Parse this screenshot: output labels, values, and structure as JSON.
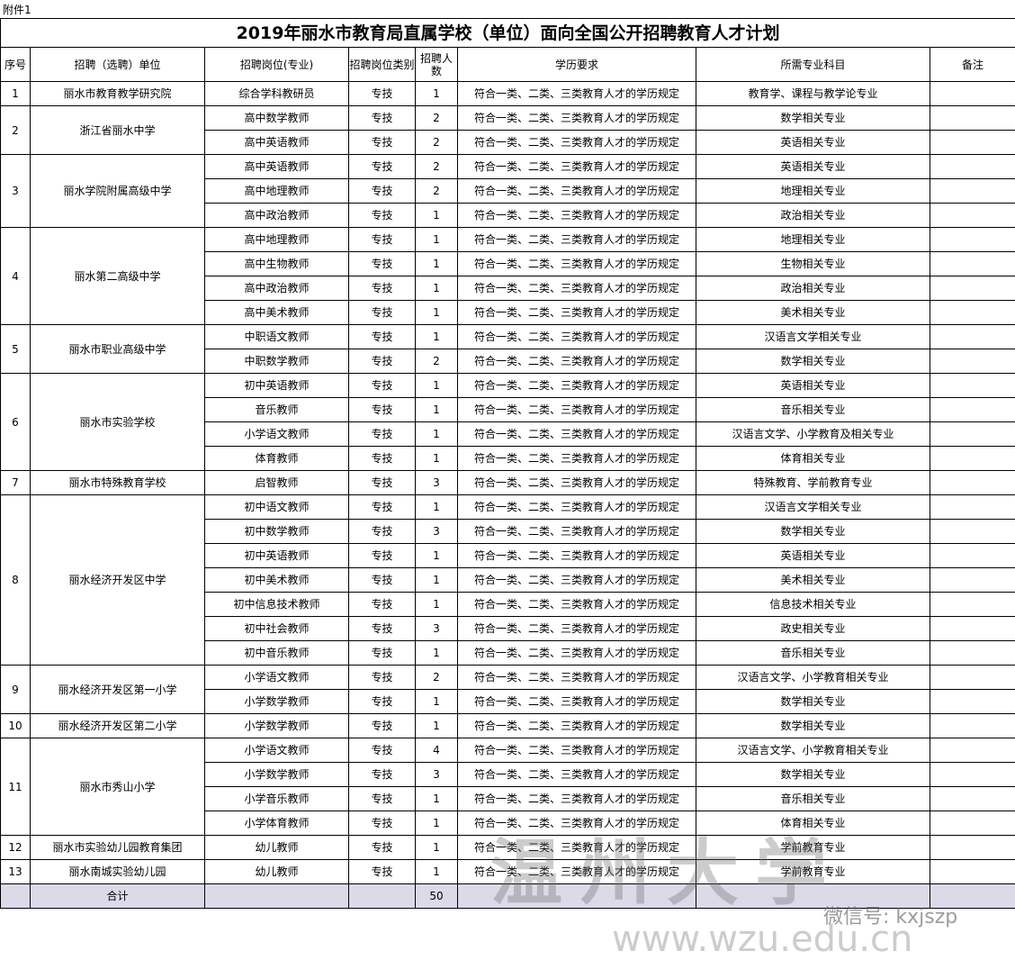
{
  "attachment": "附件1",
  "title": "2019年丽水市教育局直属学校（单位）面向全国公开招聘教育人才计划",
  "header": [
    "序号",
    "招聘（选聘）单位",
    "招聘岗位(专业)",
    "招聘岗位类别",
    "招聘人数",
    "学历要求",
    "所需专业科目",
    "备注"
  ],
  "units": [
    {
      "no": 1,
      "name": "丽水市教育教学研究院",
      "posts": [
        {
          "post": "综合学科教研员",
          "category": "专技",
          "count": 1,
          "education": "符合一类、二类、三类教育人才的学历规定",
          "major": "教育学、课程与教学论专业"
        }
      ]
    },
    {
      "no": 2,
      "name": "浙江省丽水中学",
      "posts": [
        {
          "post": "高中数学教师",
          "category": "专技",
          "count": 2,
          "education": "符合一类、二类、三类教育人才的学历规定",
          "major": "数学相关专业"
        },
        {
          "post": "高中英语教师",
          "category": "专技",
          "count": 2,
          "education": "符合一类、二类、三类教育人才的学历规定",
          "major": "英语相关专业"
        }
      ]
    },
    {
      "no": 3,
      "name": "丽水学院附属高级中学",
      "posts": [
        {
          "post": "高中英语教师",
          "category": "专技",
          "count": 2,
          "education": "符合一类、二类、三类教育人才的学历规定",
          "major": "英语相关专业"
        },
        {
          "post": "高中地理教师",
          "category": "专技",
          "count": 2,
          "education": "符合一类、二类、三类教育人才的学历规定",
          "major": "地理相关专业"
        },
        {
          "post": "高中政治教师",
          "category": "专技",
          "count": 1,
          "education": "符合一类、二类、三类教育人才的学历规定",
          "major": "政治相关专业"
        }
      ]
    },
    {
      "no": 4,
      "name": "丽水第二高级中学",
      "posts": [
        {
          "post": "高中地理教师",
          "category": "专技",
          "count": 1,
          "education": "符合一类、二类、三类教育人才的学历规定",
          "major": "地理相关专业"
        },
        {
          "post": "高中生物教师",
          "category": "专技",
          "count": 1,
          "education": "符合一类、二类、三类教育人才的学历规定",
          "major": "生物相关专业"
        },
        {
          "post": "高中政治教师",
          "category": "专技",
          "count": 1,
          "education": "符合一类、二类、三类教育人才的学历规定",
          "major": "政治相关专业"
        },
        {
          "post": "高中美术教师",
          "category": "专技",
          "count": 1,
          "education": "符合一类、二类、三类教育人才的学历规定",
          "major": "美术相关专业"
        }
      ]
    },
    {
      "no": 5,
      "name": "丽水市职业高级中学",
      "posts": [
        {
          "post": "中职语文教师",
          "category": "专技",
          "count": 1,
          "education": "符合一类、二类、三类教育人才的学历规定",
          "major": "汉语言文学相关专业"
        },
        {
          "post": "中职数学教师",
          "category": "专技",
          "count": 2,
          "education": "符合一类、二类、三类教育人才的学历规定",
          "major": "数学相关专业"
        }
      ]
    },
    {
      "no": 6,
      "name": "丽水市实验学校",
      "posts": [
        {
          "post": "初中英语教师",
          "category": "专技",
          "count": 1,
          "education": "符合一类、二类、三类教育人才的学历规定",
          "major": "英语相关专业"
        },
        {
          "post": "音乐教师",
          "category": "专技",
          "count": 1,
          "education": "符合一类、二类、三类教育人才的学历规定",
          "major": "音乐相关专业"
        },
        {
          "post": "小学语文教师",
          "category": "专技",
          "count": 1,
          "education": "符合一类、二类、三类教育人才的学历规定",
          "major": "汉语言文学、小学教育及相关专业"
        },
        {
          "post": "体育教师",
          "category": "专技",
          "count": 1,
          "education": "符合一类、二类、三类教育人才的学历规定",
          "major": "体育相关专业"
        }
      ]
    },
    {
      "no": 7,
      "name": "丽水市特殊教育学校",
      "posts": [
        {
          "post": "启智教师",
          "category": "专技",
          "count": 3,
          "education": "符合一类、二类、三类教育人才的学历规定",
          "major": "特殊教育、学前教育专业"
        }
      ]
    },
    {
      "no": 8,
      "name": "丽水经济开发区中学",
      "posts": [
        {
          "post": "初中语文教师",
          "category": "专技",
          "count": 1,
          "education": "符合一类、二类、三类教育人才的学历规定",
          "major": "汉语言文学相关专业"
        },
        {
          "post": "初中数学教师",
          "category": "专技",
          "count": 3,
          "education": "符合一类、二类、三类教育人才的学历规定",
          "major": "数学相关专业"
        },
        {
          "post": "初中英语教师",
          "category": "专技",
          "count": 1,
          "education": "符合一类、二类、三类教育人才的学历规定",
          "major": "英语相关专业"
        },
        {
          "post": "初中美术教师",
          "category": "专技",
          "count": 1,
          "education": "符合一类、二类、三类教育人才的学历规定",
          "major": "美术相关专业"
        },
        {
          "post": "初中信息技术教师",
          "category": "专技",
          "count": 1,
          "education": "符合一类、二类、三类教育人才的学历规定",
          "major": "信息技术相关专业"
        },
        {
          "post": "初中社会教师",
          "category": "专技",
          "count": 3,
          "education": "符合一类、二类、三类教育人才的学历规定",
          "major": "政史相关专业"
        },
        {
          "post": "初中音乐教师",
          "category": "专技",
          "count": 1,
          "education": "符合一类、二类、三类教育人才的学历规定",
          "major": "音乐相关专业"
        }
      ]
    },
    {
      "no": 9,
      "name": "丽水经济开发区第一小学",
      "posts": [
        {
          "post": "小学语文教师",
          "category": "专技",
          "count": 2,
          "education": "符合一类、二类、三类教育人才的学历规定",
          "major": "汉语言文学、小学教育相关专业"
        },
        {
          "post": "小学数学教师",
          "category": "专技",
          "count": 1,
          "education": "符合一类、二类、三类教育人才的学历规定",
          "major": "数学相关专业"
        }
      ]
    },
    {
      "no": 10,
      "name": "丽水经济开发区第二小学",
      "posts": [
        {
          "post": "小学数学教师",
          "category": "专技",
          "count": 1,
          "education": "符合一类、二类、三类教育人才的学历规定",
          "major": "数学相关专业"
        }
      ]
    },
    {
      "no": 11,
      "name": "丽水市秀山小学",
      "posts": [
        {
          "post": "小学语文教师",
          "category": "专技",
          "count": 4,
          "education": "符合一类、二类、三类教育人才的学历规定",
          "major": "汉语言文学、小学教育相关专业"
        },
        {
          "post": "小学数学教师",
          "category": "专技",
          "count": 3,
          "education": "符合一类、二类、三类教育人才的学历规定",
          "major": "数学相关专业"
        },
        {
          "post": "小学音乐教师",
          "category": "专技",
          "count": 1,
          "education": "符合一类、二类、三类教育人才的学历规定",
          "major": "音乐相关专业"
        },
        {
          "post": "小学体育教师",
          "category": "专技",
          "count": 1,
          "education": "符合一类、二类、三类教育人才的学历规定",
          "major": "体育相关专业"
        }
      ]
    },
    {
      "no": 12,
      "name": "丽水市实验幼儿园教育集团",
      "posts": [
        {
          "post": "幼儿教师",
          "category": "专技",
          "count": 1,
          "education": "符合一类、二类、三类教育人才的学历规定",
          "major": "学前教育专业"
        }
      ]
    },
    {
      "no": 13,
      "name": "丽水南城实验幼儿园",
      "posts": [
        {
          "post": "幼儿教师",
          "category": "专技",
          "count": 1,
          "education": "符合一类、二类、三类教育人才的学历规定",
          "major": "学前教育专业"
        }
      ]
    }
  ],
  "total": {
    "label": "合计",
    "count": 50
  },
  "watermark": {
    "school": "温州大学",
    "wechat": "微信号: kxjszp",
    "url": "www.wzu.edu.cn"
  }
}
